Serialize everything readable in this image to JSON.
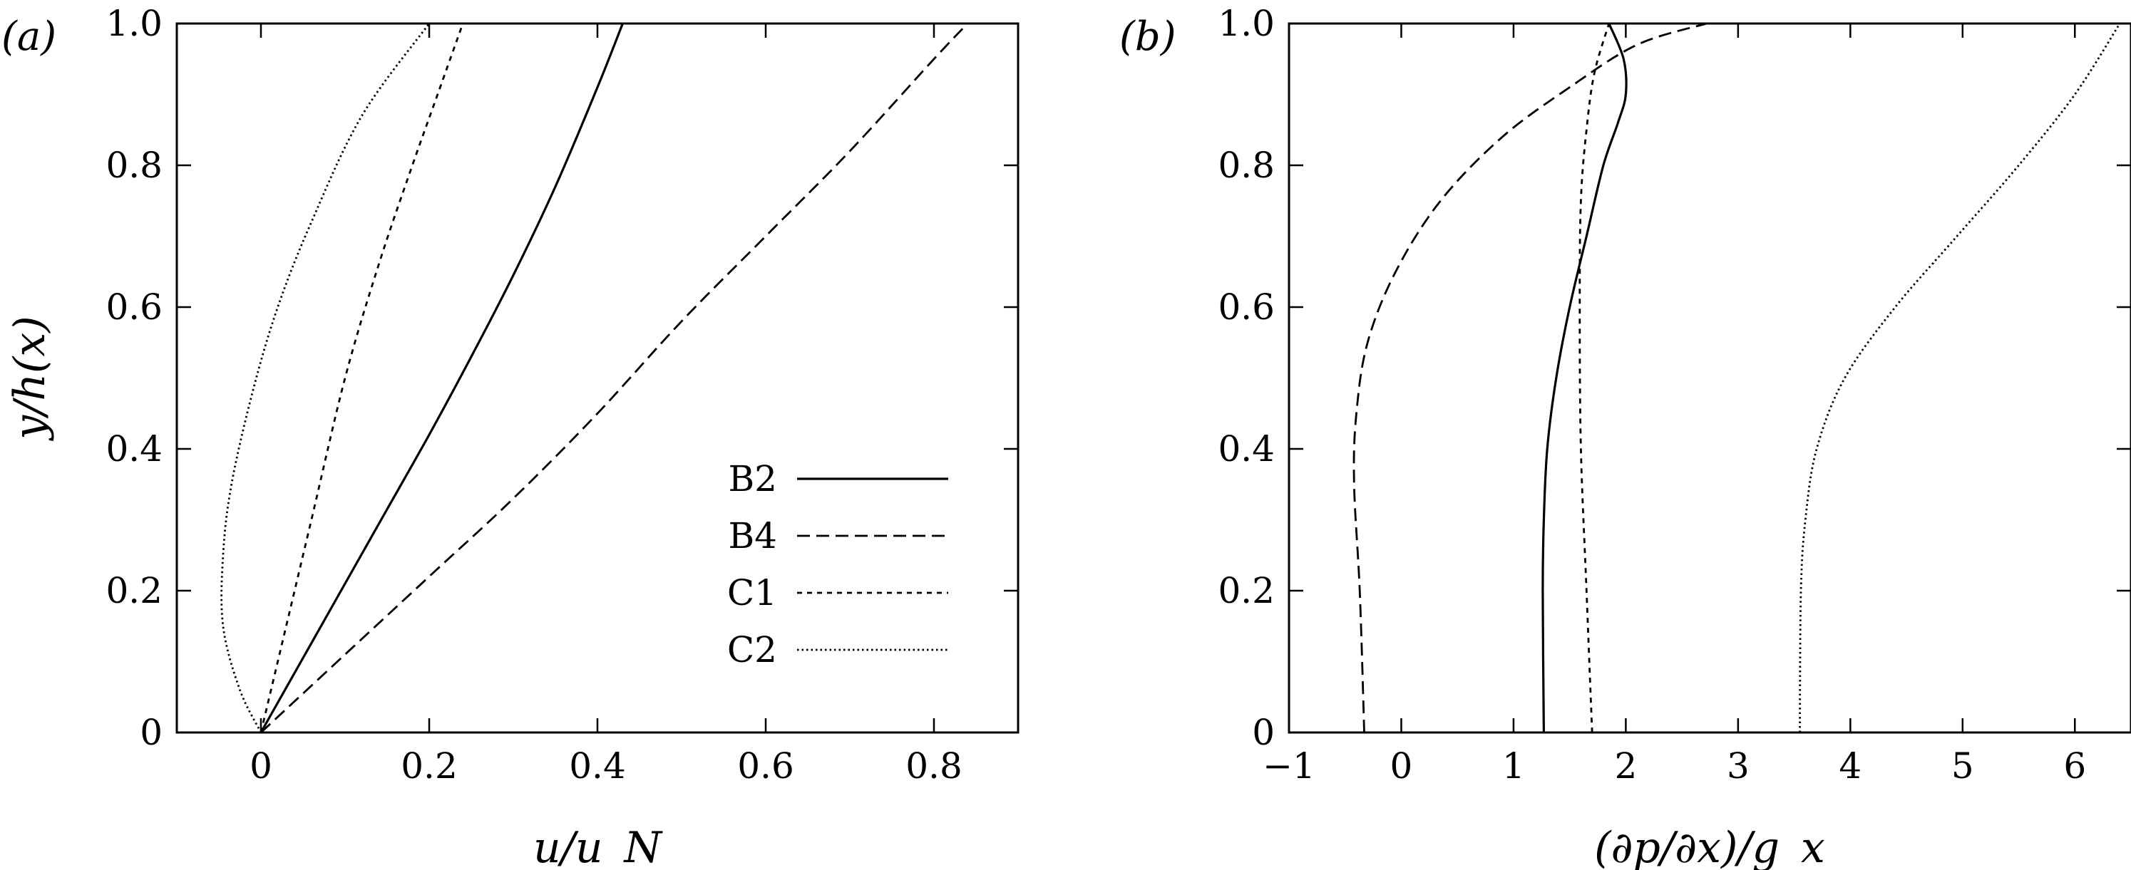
{
  "chart_data": [
    {
      "type": "line",
      "panel_label": "(a)",
      "xlabel": "u/u_N",
      "ylabel": "y/h(x)",
      "xlim": [
        -0.1,
        0.9
      ],
      "ylim": [
        0,
        1.0
      ],
      "xticks": [
        0,
        0.2,
        0.4,
        0.6,
        0.8
      ],
      "xtick_labels": [
        "0",
        "0.2",
        "0.4",
        "0.6",
        "0.8"
      ],
      "yticks": [
        0,
        0.2,
        0.4,
        0.6,
        0.8,
        1.0
      ],
      "ytick_labels": [
        "0",
        "0.2",
        "0.4",
        "0.6",
        "0.8",
        "1.0"
      ],
      "grid": false,
      "legend": "lower-right",
      "series": [
        {
          "name": "B2",
          "dash": "solid",
          "x": [
            0,
            0.05,
            0.1,
            0.15,
            0.2,
            0.25,
            0.3,
            0.35,
            0.4,
            0.43
          ],
          "y": [
            0,
            0.105,
            0.21,
            0.315,
            0.42,
            0.53,
            0.645,
            0.77,
            0.91,
            1.0
          ]
        },
        {
          "name": "B4",
          "dash": "dashed",
          "x": [
            0,
            0.1,
            0.2,
            0.3,
            0.4,
            0.5,
            0.6,
            0.7,
            0.8,
            0.84
          ],
          "y": [
            0,
            0.11,
            0.22,
            0.33,
            0.45,
            0.58,
            0.7,
            0.82,
            0.95,
            1.0
          ]
        },
        {
          "name": "C1",
          "dash": "dotted",
          "x": [
            0,
            0.02,
            0.06,
            0.1,
            0.14,
            0.18,
            0.21,
            0.24
          ],
          "y": [
            0,
            0.1,
            0.3,
            0.5,
            0.66,
            0.8,
            0.9,
            1.0
          ]
        },
        {
          "name": "C2",
          "dash": "fine-dotted",
          "x": [
            0,
            -0.025,
            -0.045,
            -0.045,
            -0.035,
            -0.01,
            0.02,
            0.06,
            0.12,
            0.2
          ],
          "y": [
            0,
            0.06,
            0.15,
            0.25,
            0.35,
            0.48,
            0.6,
            0.72,
            0.87,
            1.0
          ]
        }
      ]
    },
    {
      "type": "line",
      "panel_label": "(b)",
      "xlabel": "(∂p/∂x)/g_x",
      "ylabel": "",
      "xlim": [
        -1,
        6.5
      ],
      "ylim": [
        0,
        1.0
      ],
      "xticks": [
        -1,
        0,
        1,
        2,
        3,
        4,
        5,
        6
      ],
      "xtick_labels": [
        "−1",
        "0",
        "1",
        "2",
        "3",
        "4",
        "5",
        "6"
      ],
      "yticks": [
        0,
        0.2,
        0.4,
        0.6,
        0.8,
        1.0
      ],
      "ytick_labels": [
        "0",
        "0.2",
        "0.4",
        "0.6",
        "0.8",
        "1.0"
      ],
      "grid": false,
      "series": [
        {
          "name": "B2",
          "dash": "solid",
          "x": [
            1.27,
            1.26,
            1.27,
            1.3,
            1.38,
            1.5,
            1.65,
            1.8,
            1.93,
            2.0,
            1.98,
            1.85
          ],
          "y": [
            0,
            0.2,
            0.3,
            0.4,
            0.5,
            0.6,
            0.7,
            0.8,
            0.86,
            0.9,
            0.95,
            1.0
          ]
        },
        {
          "name": "B4",
          "dash": "dashed",
          "x": [
            -0.33,
            -0.37,
            -0.42,
            -0.4,
            -0.3,
            -0.05,
            0.35,
            0.9,
            1.5,
            2.1,
            2.72
          ],
          "y": [
            0,
            0.2,
            0.35,
            0.45,
            0.55,
            0.65,
            0.75,
            0.84,
            0.91,
            0.97,
            1.0
          ]
        },
        {
          "name": "C1",
          "dash": "dotted",
          "x": [
            1.7,
            1.65,
            1.6,
            1.59,
            1.6,
            1.65,
            1.72,
            1.85
          ],
          "y": [
            0,
            0.2,
            0.4,
            0.6,
            0.75,
            0.85,
            0.93,
            1.0
          ]
        },
        {
          "name": "C2",
          "dash": "fine-dotted",
          "x": [
            3.55,
            3.56,
            3.6,
            3.7,
            3.95,
            4.4,
            4.95,
            5.5,
            6.0,
            6.4
          ],
          "y": [
            0,
            0.2,
            0.3,
            0.4,
            0.5,
            0.6,
            0.7,
            0.8,
            0.9,
            1.0
          ]
        }
      ]
    }
  ]
}
